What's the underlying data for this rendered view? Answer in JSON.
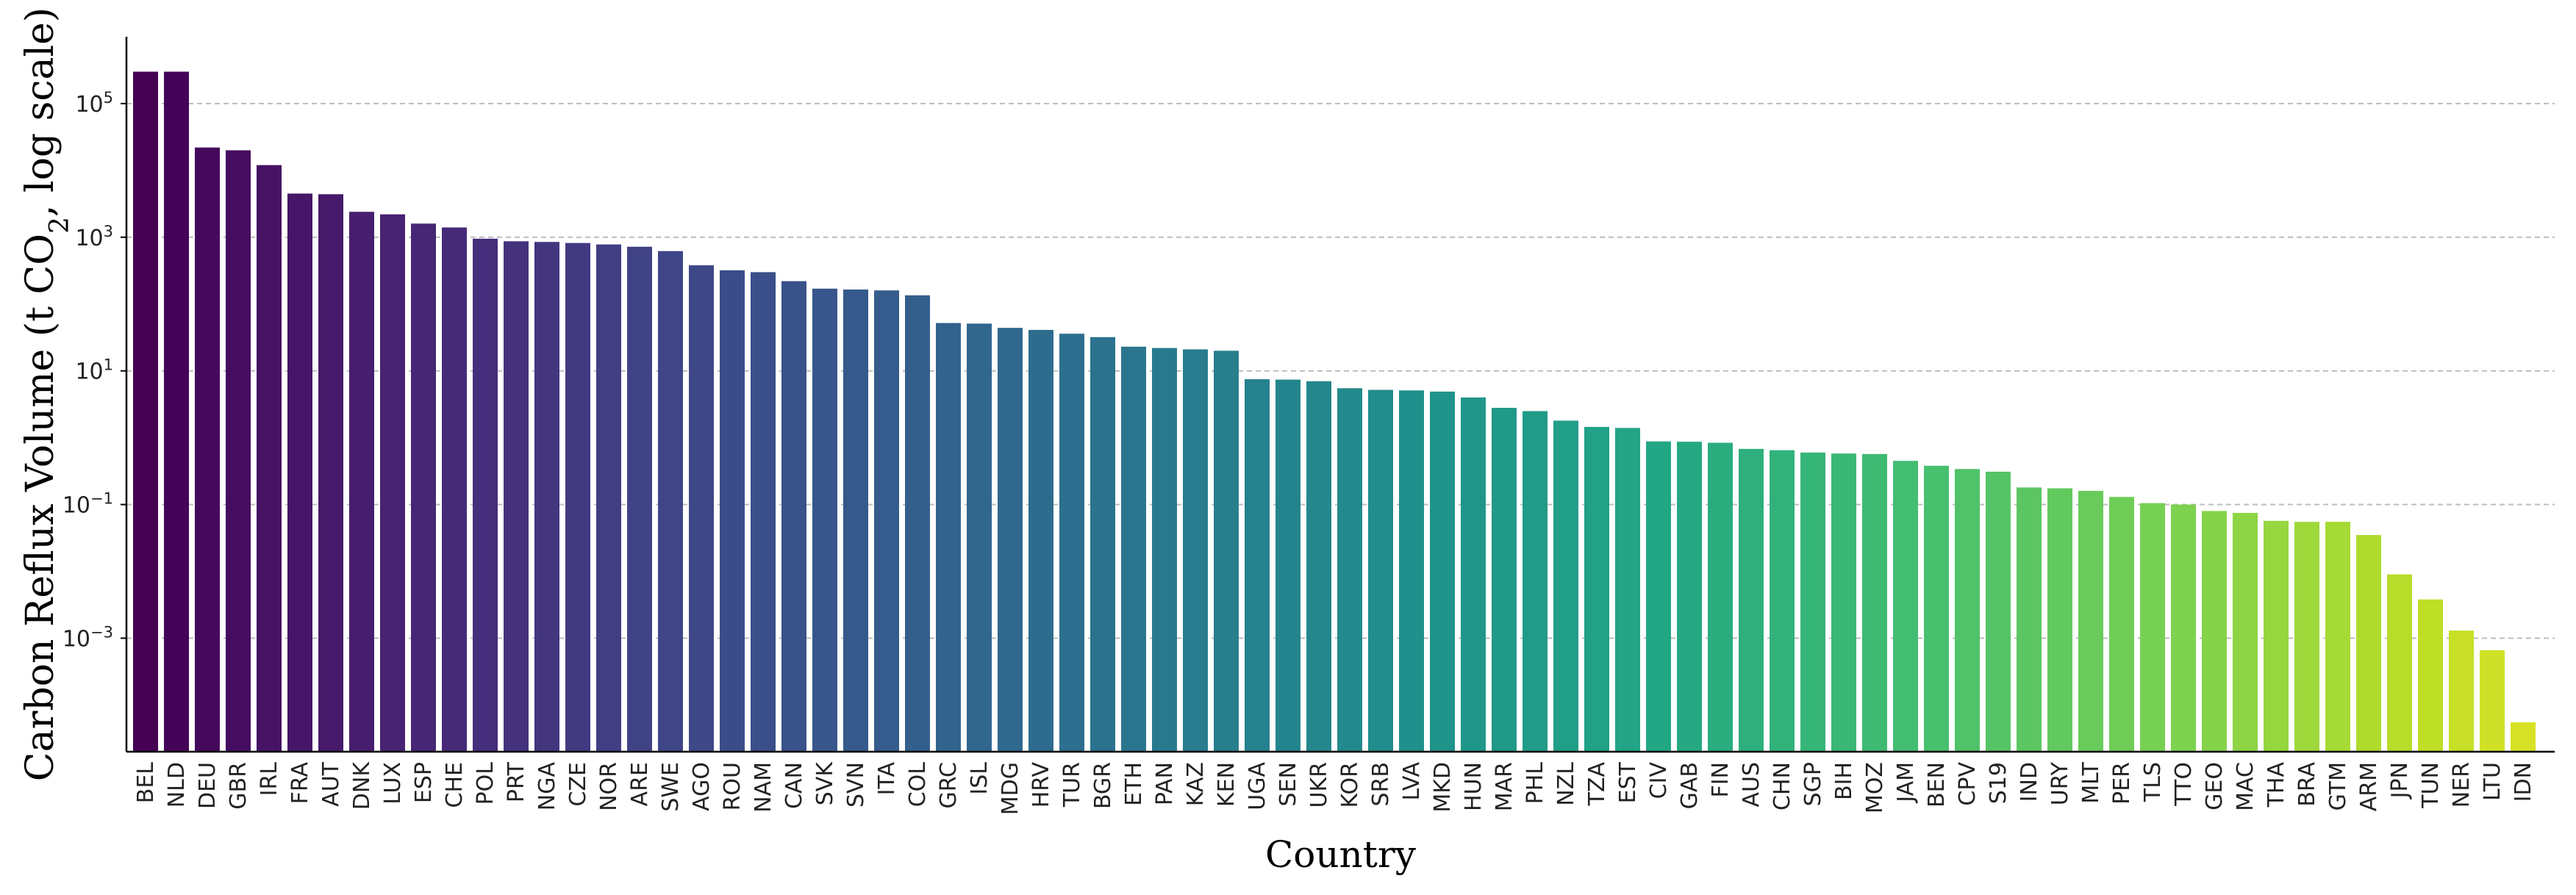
{
  "chart_data": {
    "type": "bar",
    "xlabel": "Country",
    "ylabel": {
      "prefix": "Carbon Reflux Volume (t CO",
      "subscript": "2",
      "suffix": ", log scale)"
    },
    "yscale": "log",
    "ylim": [
      2e-05,
      1000000
    ],
    "yticks": [
      {
        "value": 0.001,
        "base": "10",
        "exp": "−3"
      },
      {
        "value": 0.1,
        "base": "10",
        "exp": "−1"
      },
      {
        "value": 10,
        "base": "10",
        "exp": "1"
      },
      {
        "value": 1000,
        "base": "10",
        "exp": "3"
      },
      {
        "value": 100000,
        "base": "10",
        "exp": "5"
      }
    ],
    "grid": "y-major-dashed",
    "colormap": "viridis",
    "categories": [
      "BEL",
      "NLD",
      "DEU",
      "GBR",
      "IRL",
      "FRA",
      "AUT",
      "DNK",
      "LUX",
      "ESP",
      "CHE",
      "POL",
      "PRT",
      "NGA",
      "CZE",
      "NOR",
      "ARE",
      "SWE",
      "AGO",
      "ROU",
      "NAM",
      "CAN",
      "SVK",
      "SVN",
      "ITA",
      "COL",
      "GRC",
      "ISL",
      "MDG",
      "HRV",
      "TUR",
      "BGR",
      "ETH",
      "PAN",
      "KAZ",
      "KEN",
      "UGA",
      "SEN",
      "UKR",
      "KOR",
      "SRB",
      "LVA",
      "MKD",
      "HUN",
      "MAR",
      "PHL",
      "NZL",
      "TZA",
      "EST",
      "CIV",
      "GAB",
      "FIN",
      "AUS",
      "CHN",
      "SGP",
      "BIH",
      "MOZ",
      "JAM",
      "BEN",
      "CPV",
      "S19",
      "IND",
      "URY",
      "MLT",
      "PER",
      "TLS",
      "TTO",
      "GEO",
      "MAC",
      "THA",
      "BRA",
      "GTM",
      "ARM",
      "JPN",
      "TUN",
      "NER",
      "LTU",
      "IDN"
    ],
    "values": [
      300000,
      300000,
      22000,
      20000,
      12000,
      4500,
      4400,
      2400,
      2200,
      1600,
      1400,
      950,
      870,
      850,
      820,
      780,
      720,
      620,
      380,
      320,
      300,
      220,
      170,
      165,
      160,
      135,
      52,
      51,
      44,
      41,
      36,
      32,
      23,
      22,
      21,
      20,
      7.5,
      7.4,
      7.0,
      5.5,
      5.2,
      5.1,
      4.9,
      4.0,
      2.8,
      2.5,
      1.8,
      1.45,
      1.4,
      0.88,
      0.87,
      0.84,
      0.68,
      0.65,
      0.6,
      0.58,
      0.57,
      0.45,
      0.38,
      0.34,
      0.31,
      0.18,
      0.175,
      0.16,
      0.13,
      0.105,
      0.1,
      0.08,
      0.075,
      0.057,
      0.055,
      0.055,
      0.035,
      0.009,
      0.0038,
      0.0013,
      0.00066,
      5.5e-05
    ]
  }
}
